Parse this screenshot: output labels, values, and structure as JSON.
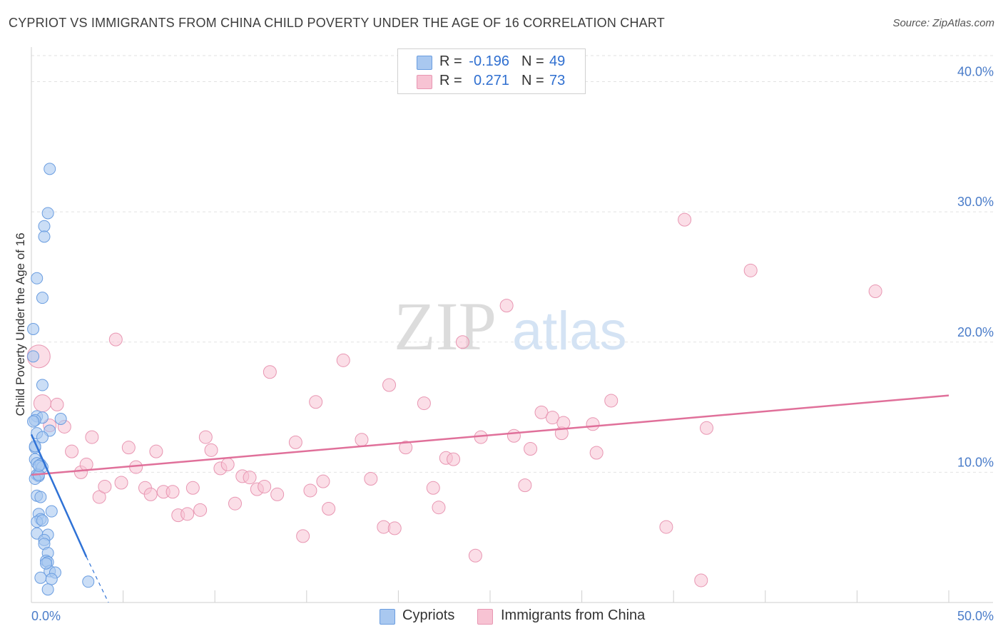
{
  "title": "CYPRIOT VS IMMIGRANTS FROM CHINA CHILD POVERTY UNDER THE AGE OF 16 CORRELATION CHART",
  "source": "Source: ZipAtlas.com",
  "watermark": {
    "zip": "ZIP",
    "atlas": "atlas"
  },
  "legend": {
    "rows": [
      {
        "r_label": "R =",
        "r_value": "-0.196",
        "n_label": "N =",
        "n_value": "49"
      },
      {
        "r_label": "R =",
        "r_value": "0.271",
        "n_label": "N =",
        "n_value": "73"
      }
    ]
  },
  "bottom_legend": {
    "cypriots": "Cypriots",
    "china": "Immigrants from China"
  },
  "colors": {
    "blue_fill": "#a9c8f0",
    "blue_stroke": "#6a9de0",
    "blue_line": "#2f72d6",
    "pink_fill": "#f7c3d3",
    "pink_stroke": "#e896b2",
    "pink_line": "#e0709a",
    "grid": "#e2e2e2",
    "tick_text": "#4a7cc9"
  },
  "chart_data": {
    "type": "scatter",
    "title": "CYPRIOT VS IMMIGRANTS FROM CHINA CHILD POVERTY UNDER THE AGE OF 16 CORRELATION CHART",
    "xlabel": "",
    "ylabel": "Child Poverty Under the Age of 16",
    "xlim": [
      0,
      50
    ],
    "ylim": [
      0,
      42
    ],
    "y_ticks": [
      10,
      20,
      30,
      40
    ],
    "y_tick_labels": [
      "10.0%",
      "20.0%",
      "30.0%",
      "40.0%"
    ],
    "x_tick_labels": {
      "min": "0.0%",
      "max": "50.0%"
    },
    "series": [
      {
        "name": "Cypriots",
        "r": -0.196,
        "n": 49,
        "points": [
          [
            1.0,
            33.3
          ],
          [
            0.9,
            29.9
          ],
          [
            0.7,
            28.9
          ],
          [
            0.7,
            28.1
          ],
          [
            0.3,
            24.9
          ],
          [
            0.6,
            23.4
          ],
          [
            0.1,
            21.0
          ],
          [
            0.1,
            18.9
          ],
          [
            0.6,
            16.7
          ],
          [
            0.3,
            14.3
          ],
          [
            0.6,
            14.2
          ],
          [
            1.6,
            14.1
          ],
          [
            0.2,
            14.0
          ],
          [
            0.1,
            13.9
          ],
          [
            1.0,
            13.2
          ],
          [
            0.3,
            13.0
          ],
          [
            0.6,
            12.7
          ],
          [
            0.2,
            11.9
          ],
          [
            0.2,
            11.0
          ],
          [
            0.3,
            10.7
          ],
          [
            0.5,
            10.6
          ],
          [
            0.6,
            10.4
          ],
          [
            0.3,
            9.8
          ],
          [
            0.4,
            9.7
          ],
          [
            0.2,
            9.5
          ],
          [
            0.3,
            8.2
          ],
          [
            0.5,
            8.1
          ],
          [
            1.1,
            7.0
          ],
          [
            0.4,
            6.8
          ],
          [
            0.5,
            6.4
          ],
          [
            0.3,
            6.2
          ],
          [
            0.3,
            5.3
          ],
          [
            0.9,
            5.2
          ],
          [
            0.7,
            4.8
          ],
          [
            0.7,
            4.5
          ],
          [
            0.9,
            3.8
          ],
          [
            0.8,
            3.2
          ],
          [
            0.9,
            3.1
          ],
          [
            1.0,
            2.4
          ],
          [
            1.3,
            2.3
          ],
          [
            0.5,
            1.9
          ],
          [
            1.1,
            1.8
          ],
          [
            3.1,
            1.6
          ],
          [
            0.9,
            1.0
          ],
          [
            0.2,
            12.0
          ],
          [
            0.4,
            9.8
          ],
          [
            0.6,
            6.3
          ],
          [
            0.8,
            3.0
          ],
          [
            0.4,
            10.5
          ]
        ],
        "trend": {
          "x0": 0.0,
          "y0": 12.9,
          "x1": 3.0,
          "y1": 3.5,
          "dash_x1": 4.2,
          "dash_y1": 0.0
        }
      },
      {
        "name": "Immigrants from China",
        "r": 0.271,
        "n": 73,
        "points": [
          [
            0.4,
            18.9
          ],
          [
            0.6,
            15.3
          ],
          [
            1.4,
            15.2
          ],
          [
            1.0,
            13.6
          ],
          [
            1.8,
            13.5
          ],
          [
            2.2,
            11.6
          ],
          [
            2.7,
            10.0
          ],
          [
            3.0,
            10.6
          ],
          [
            3.3,
            12.7
          ],
          [
            3.7,
            8.1
          ],
          [
            4.0,
            8.9
          ],
          [
            4.6,
            20.2
          ],
          [
            4.9,
            9.2
          ],
          [
            5.3,
            11.9
          ],
          [
            5.7,
            10.4
          ],
          [
            6.2,
            8.8
          ],
          [
            6.5,
            8.3
          ],
          [
            6.8,
            11.6
          ],
          [
            7.2,
            8.5
          ],
          [
            7.7,
            8.5
          ],
          [
            8.0,
            6.7
          ],
          [
            8.5,
            6.8
          ],
          [
            8.8,
            8.8
          ],
          [
            9.2,
            7.1
          ],
          [
            9.5,
            12.7
          ],
          [
            9.8,
            11.7
          ],
          [
            10.3,
            10.3
          ],
          [
            10.7,
            10.6
          ],
          [
            11.1,
            7.6
          ],
          [
            11.5,
            9.7
          ],
          [
            11.9,
            9.6
          ],
          [
            12.3,
            8.7
          ],
          [
            12.7,
            8.9
          ],
          [
            13.0,
            17.7
          ],
          [
            13.4,
            8.3
          ],
          [
            14.4,
            12.3
          ],
          [
            14.8,
            5.1
          ],
          [
            15.2,
            8.6
          ],
          [
            15.9,
            9.3
          ],
          [
            15.5,
            15.4
          ],
          [
            16.2,
            7.2
          ],
          [
            17.0,
            18.6
          ],
          [
            18.0,
            12.5
          ],
          [
            18.5,
            9.5
          ],
          [
            19.2,
            5.8
          ],
          [
            19.5,
            16.7
          ],
          [
            19.8,
            5.7
          ],
          [
            20.4,
            11.9
          ],
          [
            21.4,
            15.3
          ],
          [
            21.9,
            8.8
          ],
          [
            22.2,
            7.3
          ],
          [
            22.6,
            11.1
          ],
          [
            23.0,
            11.0
          ],
          [
            23.5,
            20.0
          ],
          [
            24.2,
            3.6
          ],
          [
            25.9,
            22.8
          ],
          [
            26.3,
            12.8
          ],
          [
            26.9,
            9.0
          ],
          [
            27.2,
            11.8
          ],
          [
            27.8,
            14.6
          ],
          [
            28.4,
            14.2
          ],
          [
            28.9,
            13.0
          ],
          [
            29.0,
            13.8
          ],
          [
            30.6,
            13.7
          ],
          [
            30.8,
            11.5
          ],
          [
            31.6,
            15.5
          ],
          [
            34.6,
            5.8
          ],
          [
            35.6,
            29.4
          ],
          [
            36.5,
            1.7
          ],
          [
            36.8,
            13.4
          ],
          [
            39.2,
            25.5
          ],
          [
            46.0,
            23.9
          ],
          [
            24.5,
            12.7
          ]
        ],
        "trend": {
          "x0": 0.0,
          "y0": 9.8,
          "x1": 50.0,
          "y1": 15.9
        }
      }
    ]
  }
}
